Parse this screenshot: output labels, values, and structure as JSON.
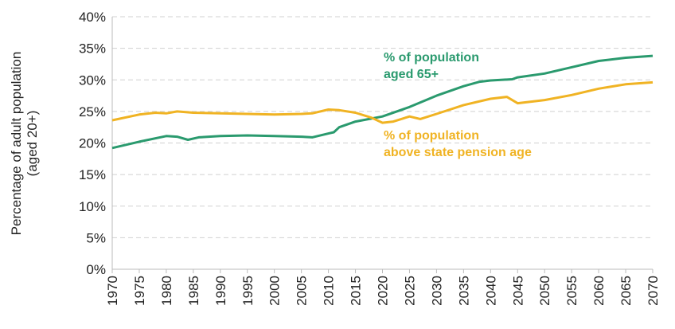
{
  "chart_data": {
    "type": "line",
    "title": "",
    "xlabel": "",
    "ylabel": "Percentage of adult population (aged 20+)",
    "ylabel_lines": [
      "Percentage of adult population",
      "(aged 20+)"
    ],
    "xlim": [
      1970,
      2070
    ],
    "ylim": [
      0,
      40
    ],
    "yticks": [
      "0%",
      "5%",
      "10%",
      "15%",
      "20%",
      "25%",
      "30%",
      "35%",
      "40%"
    ],
    "xticks": [
      "1970",
      "1975",
      "1980",
      "1985",
      "1990",
      "1995",
      "2000",
      "2005",
      "2010",
      "2015",
      "2020",
      "2025",
      "2030",
      "2035",
      "2040",
      "2045",
      "2050",
      "2055",
      "2060",
      "2065",
      "2070"
    ],
    "grid": "horizontal dashed",
    "legend": "inline labels",
    "series": [
      {
        "name": "% of population aged 65+",
        "label_lines": [
          "% of population",
          "aged 65+"
        ],
        "color": "#2a9a6e",
        "x": [
          1970,
          1975,
          1980,
          1982,
          1984,
          1986,
          1990,
          1995,
          2000,
          2005,
          2007,
          2010,
          2011,
          2012,
          2015,
          2020,
          2025,
          2030,
          2035,
          2038,
          2040,
          2044,
          2045,
          2050,
          2055,
          2060,
          2065,
          2070
        ],
        "y": [
          19.2,
          20.2,
          21.1,
          21.0,
          20.5,
          20.9,
          21.1,
          21.2,
          21.1,
          21.0,
          20.9,
          21.5,
          21.7,
          22.5,
          23.4,
          24.2,
          25.7,
          27.5,
          29.0,
          29.7,
          29.9,
          30.1,
          30.4,
          31.0,
          32.0,
          33.0,
          33.5,
          33.8
        ]
      },
      {
        "name": "% of population above state pension age",
        "label_lines": [
          "% of population",
          "above state pension age"
        ],
        "color": "#f0b323",
        "x": [
          1970,
          1975,
          1978,
          1980,
          1982,
          1985,
          1990,
          1995,
          2000,
          2005,
          2007,
          2010,
          2012,
          2015,
          2018,
          2020,
          2022,
          2025,
          2027,
          2030,
          2035,
          2040,
          2043,
          2045,
          2050,
          2055,
          2060,
          2065,
          2070
        ],
        "y": [
          23.6,
          24.5,
          24.8,
          24.7,
          25.0,
          24.8,
          24.7,
          24.6,
          24.5,
          24.6,
          24.7,
          25.3,
          25.2,
          24.8,
          24.0,
          23.2,
          23.4,
          24.2,
          23.8,
          24.6,
          26.0,
          27.0,
          27.3,
          26.3,
          26.8,
          27.6,
          28.6,
          29.3,
          29.6
        ]
      }
    ]
  }
}
